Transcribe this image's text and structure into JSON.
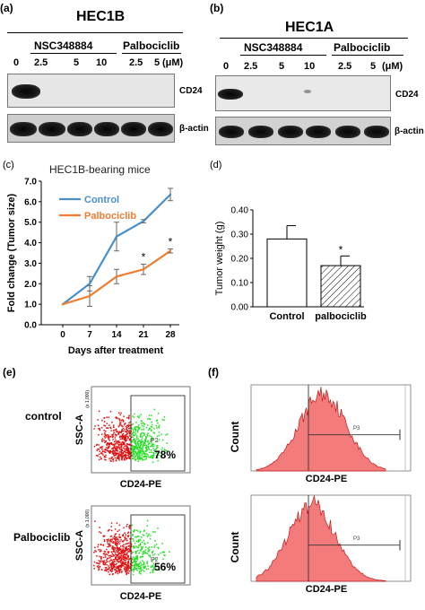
{
  "panels": {
    "a": {
      "letter": "(a)",
      "title": "HEC1B",
      "group1": "NSC348884",
      "group2": "Palbociclib",
      "lanes": [
        "0",
        "2.5",
        "5",
        "10",
        "2.5",
        "5"
      ],
      "unit": "(μM)",
      "row1_label": "CD24",
      "row2_label": "β-actin"
    },
    "b": {
      "letter": "(b)",
      "title": "HEC1A",
      "group1": "NSC348884",
      "group2": "Palbociclib",
      "lanes": [
        "0",
        "2.5",
        "5",
        "10",
        "2.5",
        "5"
      ],
      "unit": "(μM)",
      "row1_label": "CD24",
      "row2_label": "β-actin"
    },
    "c": {
      "letter": "(c)",
      "subtitle": "HEC1B-bearing mice"
    },
    "d": {
      "letter": "(d)"
    },
    "e": {
      "letter": "(e)",
      "rows": [
        {
          "label": "control",
          "percent": "78%",
          "gate": "P2",
          "ylabel": "SSC-A",
          "xlabel": "CD24-PE",
          "axis_note": "(x 1,000)"
        },
        {
          "label": "Palbociclib",
          "percent": "56%",
          "gate": "P2",
          "ylabel": "SSC-A",
          "xlabel": "CD24-PE",
          "axis_note": "(x 1,000)"
        }
      ]
    },
    "f": {
      "letter": "(f)",
      "rows": [
        {
          "ylabel": "Count",
          "xlabel": "CD24-PE",
          "gate": "P3"
        },
        {
          "ylabel": "Count",
          "xlabel": "CD24-PE",
          "gate": "P3"
        }
      ]
    }
  },
  "chart_data": [
    {
      "type": "line",
      "xlabel": "Days after treatment",
      "ylabel": "Fold change (Tumor size)",
      "x": [
        0,
        7,
        14,
        21,
        28
      ],
      "ylim": [
        0,
        7
      ],
      "yticks": [
        "0.0",
        "1.0",
        "2.0",
        "3.0",
        "4.0",
        "5.0",
        "6.0",
        "7.0"
      ],
      "legend_position": "top-left",
      "series": [
        {
          "name": "Control",
          "color": "#4a90c8",
          "values": [
            1.0,
            2.0,
            4.3,
            5.05,
            6.35
          ],
          "errors": [
            0,
            0.35,
            0.7,
            0.08,
            0.3
          ]
        },
        {
          "name": "Palbociclib",
          "color": "#ee7d31",
          "values": [
            1.0,
            1.4,
            2.35,
            2.7,
            3.6
          ],
          "errors": [
            0,
            0.5,
            0.35,
            0.25,
            0.1
          ]
        }
      ],
      "annotations": [
        {
          "x": 21,
          "text": "*"
        },
        {
          "x": 28,
          "text": "*"
        }
      ]
    },
    {
      "type": "bar",
      "ylabel": "Tumor weight (g)",
      "categories": [
        "Control",
        "palbociclib"
      ],
      "values": [
        0.28,
        0.17
      ],
      "errors": [
        0.055,
        0.04
      ],
      "ylim": [
        0,
        0.4
      ],
      "yticks": [
        "0.00",
        "0.10",
        "0.20",
        "0.30",
        "0.40"
      ],
      "annotations": [
        {
          "category": "palbociclib",
          "text": "*"
        }
      ]
    }
  ]
}
